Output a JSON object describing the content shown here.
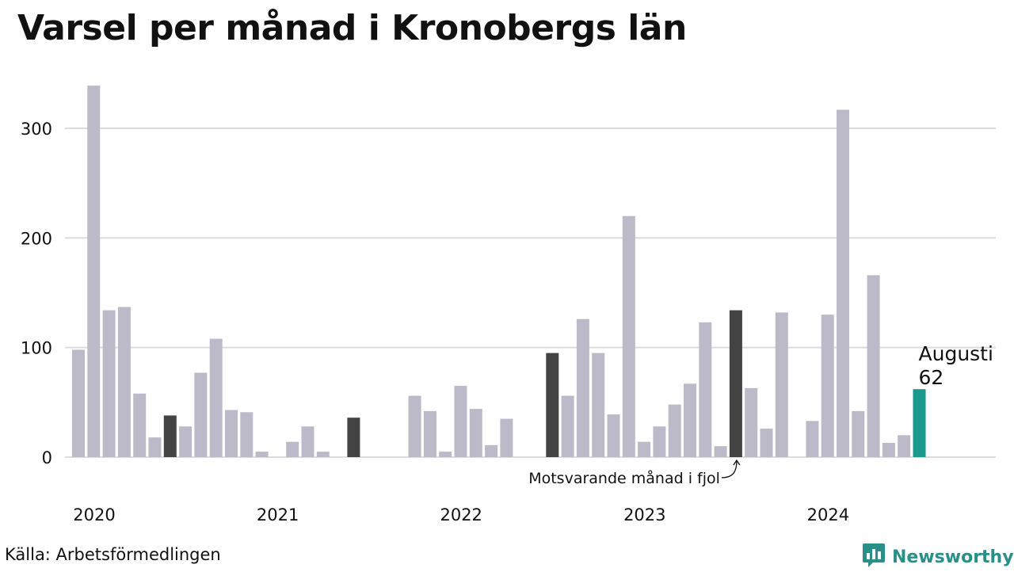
{
  "title": "Varsel per månad i Kronobergs län",
  "source": "Källa: Arbetsförmedlingen",
  "brand": {
    "name": "Newsworthy",
    "icon": "newsworthy-logo-icon"
  },
  "colors": {
    "normal": "#bcbac9",
    "same_month": "#434343",
    "current": "#1a9a8c",
    "grid": "#dcdce0"
  },
  "annotations": {
    "current_month": "Augusti",
    "current_value": "62",
    "same_month_label": "Motsvarande månad i fjol"
  },
  "chart_data": {
    "type": "bar",
    "title": "Varsel per månad i Kronobergs län",
    "xlabel": "",
    "ylabel": "",
    "ylim": [
      0,
      350
    ],
    "yticks": [
      0,
      100,
      200,
      300
    ],
    "grid": true,
    "year_labels": [
      "2020",
      "2021",
      "2022",
      "2023",
      "2024"
    ],
    "start": "2020-01",
    "values": [
      98,
      339,
      134,
      137,
      58,
      18,
      38,
      28,
      77,
      108,
      43,
      41,
      5,
      0,
      14,
      28,
      5,
      0,
      36,
      0,
      0,
      0,
      56,
      42,
      5,
      65,
      44,
      11,
      35,
      0,
      0,
      95,
      56,
      126,
      95,
      39,
      220,
      14,
      28,
      48,
      67,
      123,
      10,
      134,
      63,
      26,
      132,
      0,
      33,
      130,
      317,
      42,
      166,
      13,
      20,
      62
    ],
    "highlight_same_month": [
      6,
      18,
      31,
      43
    ],
    "highlight_current": [
      55
    ]
  }
}
